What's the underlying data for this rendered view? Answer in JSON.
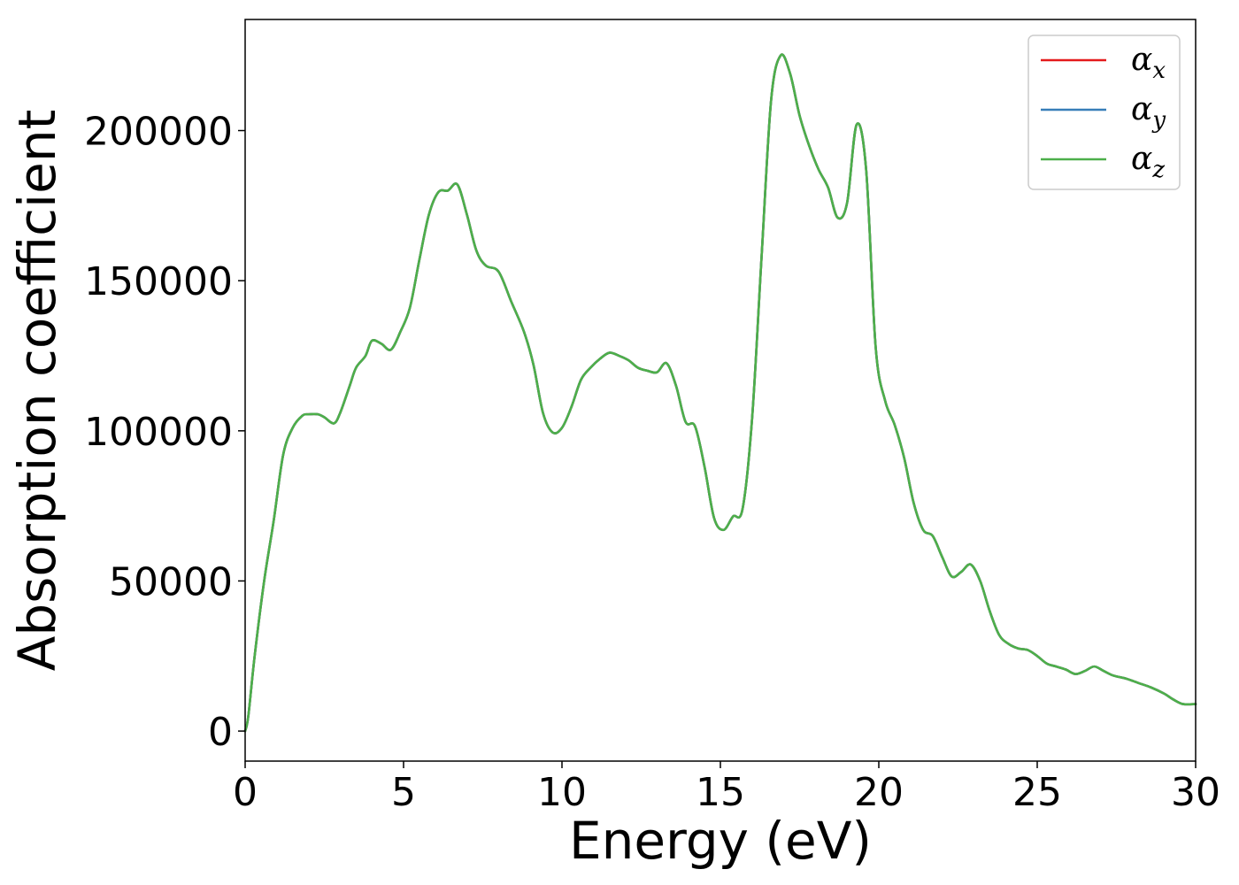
{
  "chart_data": {
    "type": "line",
    "title": "",
    "xlabel": "Energy (eV)",
    "ylabel": "Absorption coefficient",
    "xlim": [
      0,
      30
    ],
    "ylim": [
      -10000,
      237000
    ],
    "xticks": [
      0,
      5,
      10,
      15,
      20,
      25,
      30
    ],
    "xtick_labels": [
      "0",
      "5",
      "10",
      "15",
      "20",
      "25",
      "30"
    ],
    "yticks": [
      0,
      50000,
      100000,
      150000,
      200000
    ],
    "ytick_labels": [
      "0",
      "50000",
      "100000",
      "150000",
      "200000"
    ],
    "grid": false,
    "legend_position": "top-right",
    "x": [
      0,
      0.1,
      0.3,
      0.6,
      0.9,
      1.2,
      1.5,
      1.8,
      2.0,
      2.3,
      2.5,
      2.8,
      3.0,
      3.3,
      3.5,
      3.8,
      4.0,
      4.3,
      4.6,
      4.9,
      5.2,
      5.5,
      5.8,
      6.1,
      6.4,
      6.7,
      7.0,
      7.3,
      7.6,
      8.0,
      8.4,
      8.8,
      9.1,
      9.4,
      9.7,
      10.0,
      10.3,
      10.6,
      10.9,
      11.2,
      11.5,
      11.8,
      12.1,
      12.4,
      12.7,
      13.0,
      13.3,
      13.6,
      13.9,
      14.2,
      14.5,
      14.8,
      15.1,
      15.4,
      15.7,
      16.0,
      16.3,
      16.6,
      16.9,
      17.2,
      17.5,
      17.8,
      18.1,
      18.4,
      18.7,
      19.0,
      19.3,
      19.6,
      19.9,
      20.2,
      20.5,
      20.8,
      21.1,
      21.4,
      21.7,
      22.0,
      22.3,
      22.6,
      22.9,
      23.2,
      23.5,
      23.8,
      24.1,
      24.4,
      24.7,
      25.0,
      25.3,
      25.6,
      25.9,
      26.2,
      26.5,
      26.8,
      27.1,
      27.4,
      27.8,
      28.2,
      28.6,
      29.0,
      29.3,
      29.6,
      30.0
    ],
    "series": [
      {
        "name": "αx",
        "color": "#e41a1c",
        "values": [
          0,
          5000,
          25000,
          50000,
          70000,
          92000,
          101000,
          105000,
          105500,
          105500,
          104500,
          102500,
          106000,
          115000,
          121000,
          125000,
          130000,
          129000,
          127000,
          133000,
          141000,
          157000,
          172000,
          179500,
          180000,
          182000,
          172000,
          160000,
          155000,
          153000,
          143000,
          133000,
          122000,
          106000,
          99500,
          101000,
          108000,
          117000,
          121000,
          124000,
          126000,
          125000,
          123500,
          121000,
          120000,
          119500,
          122500,
          115000,
          103000,
          101500,
          88000,
          71000,
          67000,
          71500,
          74000,
          104000,
          158000,
          210000,
          225000,
          219000,
          205000,
          195000,
          187000,
          181000,
          171000,
          176000,
          202000,
          187000,
          128000,
          110000,
          102000,
          91000,
          76000,
          67000,
          65000,
          58000,
          51500,
          53000,
          55500,
          50000,
          40000,
          32000,
          29000,
          27500,
          27000,
          25000,
          22500,
          21500,
          20500,
          19000,
          20000,
          21500,
          20000,
          18500,
          17500,
          16000,
          14500,
          12500,
          10500,
          9000,
          9000
        ]
      },
      {
        "name": "αy",
        "color": "#377eb8",
        "values": [
          0,
          5000,
          25000,
          50000,
          70000,
          92000,
          101000,
          105000,
          105500,
          105500,
          104500,
          102500,
          106000,
          115000,
          121000,
          125000,
          130000,
          129000,
          127000,
          133000,
          141000,
          157000,
          172000,
          179500,
          180000,
          182000,
          172000,
          160000,
          155000,
          153000,
          143000,
          133000,
          122000,
          106000,
          99500,
          101000,
          108000,
          117000,
          121000,
          124000,
          126000,
          125000,
          123500,
          121000,
          120000,
          119500,
          122500,
          115000,
          103000,
          101500,
          88000,
          71000,
          67000,
          71500,
          74000,
          104000,
          158000,
          210000,
          225000,
          219000,
          205000,
          195000,
          187000,
          181000,
          171000,
          176000,
          202000,
          187000,
          128000,
          110000,
          102000,
          91000,
          76000,
          67000,
          65000,
          58000,
          51500,
          53000,
          55500,
          50000,
          40000,
          32000,
          29000,
          27500,
          27000,
          25000,
          22500,
          21500,
          20500,
          19000,
          20000,
          21500,
          20000,
          18500,
          17500,
          16000,
          14500,
          12500,
          10500,
          9000,
          9000
        ]
      },
      {
        "name": "αz",
        "color": "#4daf4a",
        "values": [
          0,
          5000,
          25000,
          50000,
          70000,
          92000,
          101000,
          105000,
          105500,
          105500,
          104500,
          102500,
          106000,
          115000,
          121000,
          125000,
          130000,
          129000,
          127000,
          133000,
          141000,
          157000,
          172000,
          179500,
          180000,
          182000,
          172000,
          160000,
          155000,
          153000,
          143000,
          133000,
          122000,
          106000,
          99500,
          101000,
          108000,
          117000,
          121000,
          124000,
          126000,
          125000,
          123500,
          121000,
          120000,
          119500,
          122500,
          115000,
          103000,
          101500,
          88000,
          71000,
          67000,
          71500,
          74000,
          104000,
          158000,
          210000,
          225000,
          219000,
          205000,
          195000,
          187000,
          181000,
          171000,
          176000,
          202000,
          187000,
          128000,
          110000,
          102000,
          91000,
          76000,
          67000,
          65000,
          58000,
          51500,
          53000,
          55500,
          50000,
          40000,
          32000,
          29000,
          27500,
          27000,
          25000,
          22500,
          21500,
          20500,
          19000,
          20000,
          21500,
          20000,
          18500,
          17500,
          16000,
          14500,
          12500,
          10500,
          9000,
          9000
        ]
      }
    ],
    "legend": [
      {
        "symbol": "α",
        "subscript": "x",
        "color": "#e41a1c"
      },
      {
        "symbol": "α",
        "subscript": "y",
        "color": "#377eb8"
      },
      {
        "symbol": "α",
        "subscript": "z",
        "color": "#4daf4a"
      }
    ]
  }
}
